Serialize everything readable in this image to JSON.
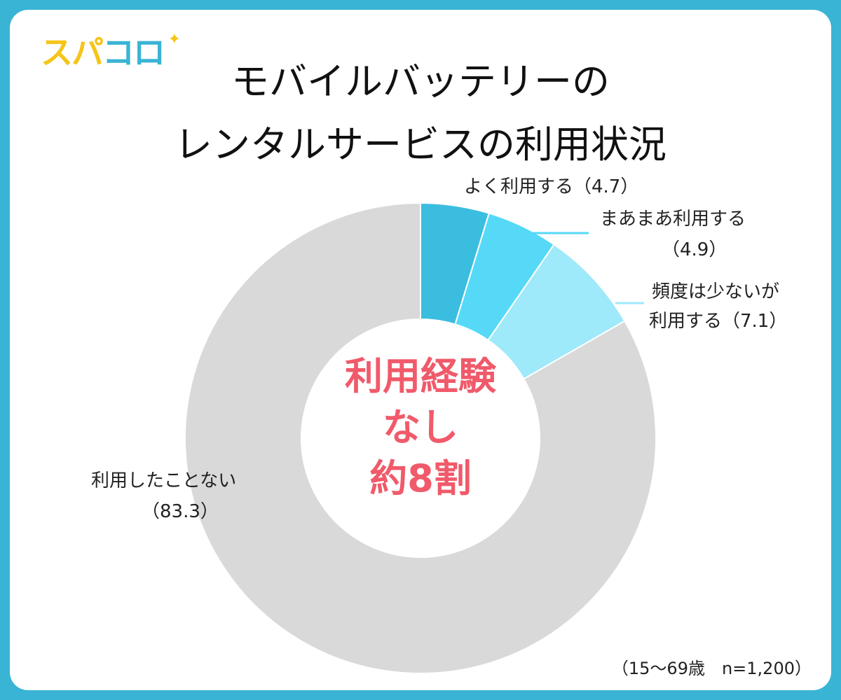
{
  "logo": {
    "text_part1": "スパ",
    "text_part2": "コロ",
    "star": "✦"
  },
  "title_line1": "モバイルバッテリーの",
  "title_line2": "レンタルサービスの利用状況",
  "center_text": {
    "line1": "利用経験",
    "line2": "なし",
    "line3": "約8割"
  },
  "labels": {
    "often": "よく利用する（4.7）",
    "sometimes_1": "まあまあ利用する",
    "sometimes_2": "（4.9）",
    "rarely_1": "頻度は少ないが",
    "rarely_2": "利用する（7.1）",
    "never_1": "利用したことない",
    "never_2": "（83.3）"
  },
  "footnote": "（15〜69歳　n=1,200）",
  "colors": {
    "frame": "#3ab4d4",
    "often": "#3bbde0",
    "sometimes": "#55d9f7",
    "rarely": "#9ee9fa",
    "never": "#d9d9d9",
    "center_text": "#f05a6a"
  },
  "chart_data": {
    "type": "pie",
    "donut": true,
    "categories": [
      "よく利用する",
      "まあまあ利用する",
      "頻度は少ないが利用する",
      "利用したことない"
    ],
    "values": [
      4.7,
      4.9,
      7.1,
      83.3
    ],
    "title": "モバイルバッテリーのレンタルサービスの利用状況"
  }
}
